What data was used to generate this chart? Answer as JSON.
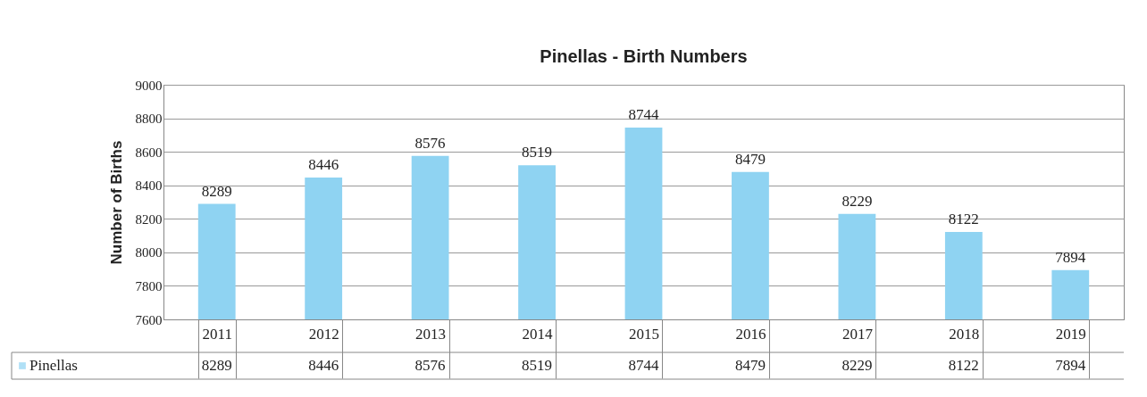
{
  "chart_data": {
    "type": "bar",
    "title": "Pinellas - Birth Numbers",
    "ylabel": "Number of Births",
    "categories": [
      "2011",
      "2012",
      "2013",
      "2014",
      "2015",
      "2016",
      "2017",
      "2018",
      "2019"
    ],
    "series": [
      {
        "name": "Pinellas",
        "color": "#8fd3f2",
        "values": [
          8289,
          8446,
          8576,
          8519,
          8744,
          8479,
          8229,
          8122,
          7894
        ]
      }
    ],
    "annotations": [
      "8289",
      "8446",
      "8576",
      "8519",
      "8744",
      "8479",
      "8229",
      "8122",
      "7894"
    ],
    "ylim": [
      7600,
      9000
    ],
    "yticks": [
      7600,
      7800,
      8000,
      8200,
      8400,
      8600,
      8800,
      9000
    ],
    "grid": "y",
    "data_labels": true,
    "legend": "bottom left"
  }
}
